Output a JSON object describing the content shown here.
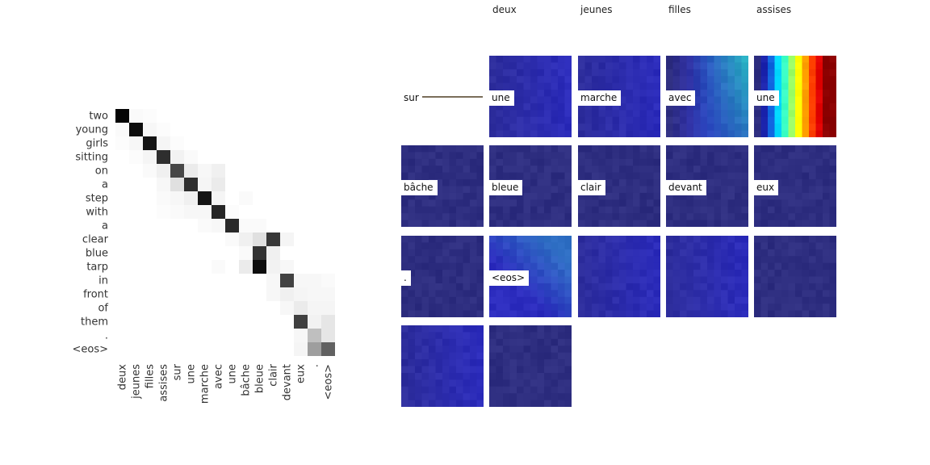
{
  "chart_data": [
    {
      "type": "heatmap",
      "y_labels": [
        "two",
        "young",
        "girls",
        "sitting",
        "on",
        "a",
        "step",
        "with",
        "a",
        "clear",
        "blue",
        "tarp",
        "in",
        "front",
        "of",
        "them",
        ".",
        "<eos>"
      ],
      "x_labels": [
        "deux",
        "jeunes",
        "filles",
        "assises",
        "sur",
        "une",
        "marche",
        "avec",
        "une",
        "bâche",
        "bleue",
        "clair",
        "devant",
        "eux",
        ".",
        "<eos>"
      ],
      "colormap": "greys",
      "values": [
        [
          0.98,
          0.02,
          0.01,
          0.0,
          0.0,
          0.0,
          0.0,
          0.0,
          0.0,
          0.0,
          0.0,
          0.0,
          0.0,
          0.0,
          0.0,
          0.0
        ],
        [
          0.02,
          0.95,
          0.03,
          0.01,
          0.0,
          0.0,
          0.0,
          0.0,
          0.0,
          0.0,
          0.0,
          0.0,
          0.0,
          0.0,
          0.0,
          0.0
        ],
        [
          0.01,
          0.03,
          0.92,
          0.04,
          0.01,
          0.0,
          0.0,
          0.0,
          0.0,
          0.0,
          0.0,
          0.0,
          0.0,
          0.0,
          0.0,
          0.0
        ],
        [
          0.0,
          0.01,
          0.04,
          0.82,
          0.05,
          0.02,
          0.0,
          0.0,
          0.0,
          0.0,
          0.0,
          0.0,
          0.0,
          0.0,
          0.0,
          0.0
        ],
        [
          0.0,
          0.0,
          0.02,
          0.06,
          0.72,
          0.08,
          0.03,
          0.06,
          0.0,
          0.0,
          0.0,
          0.0,
          0.0,
          0.0,
          0.0,
          0.0
        ],
        [
          0.0,
          0.0,
          0.0,
          0.03,
          0.12,
          0.82,
          0.04,
          0.08,
          0.0,
          0.0,
          0.0,
          0.0,
          0.0,
          0.0,
          0.0,
          0.0
        ],
        [
          0.0,
          0.0,
          0.0,
          0.02,
          0.03,
          0.06,
          0.92,
          0.04,
          0.0,
          0.02,
          0.0,
          0.0,
          0.0,
          0.0,
          0.0,
          0.0
        ],
        [
          0.0,
          0.0,
          0.0,
          0.01,
          0.02,
          0.03,
          0.03,
          0.85,
          0.01,
          0.0,
          0.0,
          0.0,
          0.0,
          0.0,
          0.0,
          0.0
        ],
        [
          0.0,
          0.0,
          0.0,
          0.0,
          0.0,
          0.0,
          0.02,
          0.03,
          0.84,
          0.02,
          0.02,
          0.0,
          0.0,
          0.0,
          0.0,
          0.0
        ],
        [
          0.0,
          0.0,
          0.0,
          0.0,
          0.0,
          0.0,
          0.0,
          0.0,
          0.02,
          0.06,
          0.12,
          0.78,
          0.04,
          0.0,
          0.0,
          0.0
        ],
        [
          0.0,
          0.0,
          0.0,
          0.0,
          0.0,
          0.0,
          0.0,
          0.0,
          0.0,
          0.02,
          0.8,
          0.06,
          0.0,
          0.0,
          0.0,
          0.0
        ],
        [
          0.0,
          0.0,
          0.0,
          0.0,
          0.0,
          0.0,
          0.0,
          0.02,
          0.0,
          0.08,
          0.95,
          0.05,
          0.03,
          0.0,
          0.0,
          0.0
        ],
        [
          0.0,
          0.0,
          0.0,
          0.0,
          0.0,
          0.0,
          0.0,
          0.0,
          0.0,
          0.0,
          0.0,
          0.03,
          0.74,
          0.03,
          0.03,
          0.02
        ],
        [
          0.0,
          0.0,
          0.0,
          0.0,
          0.0,
          0.0,
          0.0,
          0.0,
          0.0,
          0.0,
          0.0,
          0.03,
          0.06,
          0.04,
          0.03,
          0.03
        ],
        [
          0.0,
          0.0,
          0.0,
          0.0,
          0.0,
          0.0,
          0.0,
          0.0,
          0.0,
          0.0,
          0.0,
          0.0,
          0.03,
          0.08,
          0.04,
          0.04
        ],
        [
          0.0,
          0.0,
          0.0,
          0.0,
          0.0,
          0.0,
          0.0,
          0.0,
          0.0,
          0.0,
          0.0,
          0.0,
          0.0,
          0.75,
          0.05,
          0.1
        ],
        [
          0.0,
          0.0,
          0.0,
          0.0,
          0.0,
          0.0,
          0.0,
          0.0,
          0.0,
          0.0,
          0.0,
          0.0,
          0.0,
          0.03,
          0.25,
          0.1
        ],
        [
          0.0,
          0.0,
          0.0,
          0.0,
          0.0,
          0.0,
          0.0,
          0.0,
          0.0,
          0.0,
          0.0,
          0.0,
          0.0,
          0.04,
          0.38,
          0.62
        ]
      ]
    },
    {
      "type": "heatmap",
      "column_headers": [
        "deux",
        "jeunes",
        "filles",
        "assises"
      ],
      "tiles": [
        {
          "label": "sur",
          "style": "empty"
        },
        {
          "label": "une",
          "style": "blue"
        },
        {
          "label": "marche",
          "style": "blue"
        },
        {
          "label": "avec",
          "style": "gradient_cyan_right"
        },
        {
          "label": "une",
          "style": "rainbow_right"
        },
        {
          "label": "bâche",
          "style": "dark"
        },
        {
          "label": "bleue",
          "style": "dark"
        },
        {
          "label": "clair",
          "style": "dark"
        },
        {
          "label": "devant",
          "style": "dark"
        },
        {
          "label": "eux",
          "style": "dark"
        },
        {
          "label": ".",
          "style": "dark"
        },
        {
          "label": "<eos>",
          "style": "gradient_topright"
        },
        {
          "label": "",
          "style": "blue"
        },
        {
          "label": "",
          "style": "blue"
        },
        {
          "label": "",
          "style": "dark"
        },
        {
          "label": "",
          "style": "blue"
        },
        {
          "label": "",
          "style": "dark"
        }
      ]
    }
  ]
}
